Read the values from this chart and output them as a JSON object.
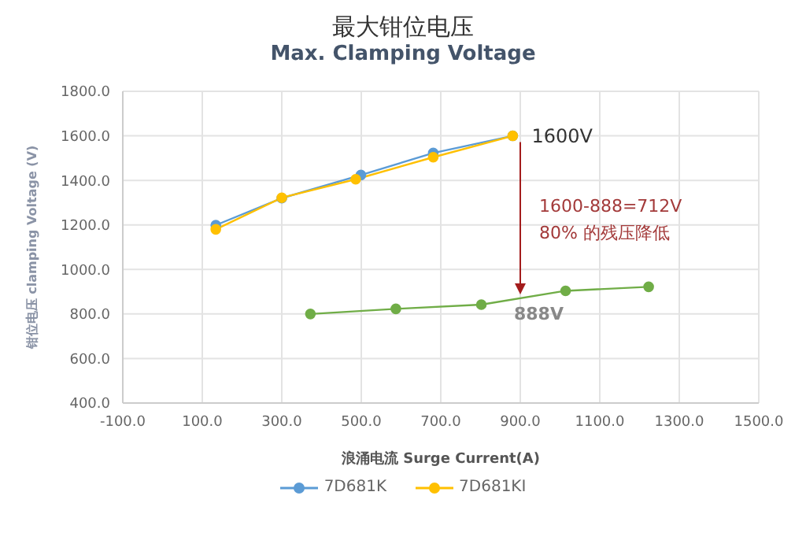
{
  "chart_data": {
    "type": "line",
    "title": "最大钳位电压",
    "subtitle": "Max. Clamping Voltage",
    "xlabel": "浪涌电流 Surge Current(A)",
    "ylabel": "钳位电压 clamping Voltage (V)",
    "series": [
      {
        "color": "#70ad47",
        "x": [
          372,
          587,
          802,
          1014,
          1223
        ],
        "values": [
          800,
          823,
          842,
          904,
          922
        ]
      },
      {
        "name": "7D681K",
        "color": "#5b9bd5",
        "x": [
          134,
          300,
          499,
          681,
          881
        ],
        "values": [
          1199,
          1320,
          1424,
          1523,
          1600
        ]
      },
      {
        "name": "7D681KI",
        "color": "#ffc000",
        "x": [
          134,
          300,
          486,
          681,
          881
        ],
        "values": [
          1180,
          1322,
          1405,
          1504,
          1600
        ]
      }
    ],
    "xlim": [
      -100,
      1500
    ],
    "xticks": [
      {
        "value": -100,
        "label": "-100.0"
      },
      {
        "value": 100,
        "label": "100.0"
      },
      {
        "value": 300,
        "label": "300.0"
      },
      {
        "value": 500,
        "label": "500.0"
      },
      {
        "value": 700,
        "label": "700.0"
      },
      {
        "value": 900,
        "label": "900.0"
      },
      {
        "value": 1100,
        "label": "1100.0"
      },
      {
        "value": 1300,
        "label": "1300.0"
      },
      {
        "value": 1500,
        "label": "1500.0"
      }
    ],
    "ylim": [
      400,
      1800
    ],
    "yticks": [
      {
        "value": 400,
        "label": "400.0"
      },
      {
        "value": 600,
        "label": "600.0"
      },
      {
        "value": 800,
        "label": "800.0"
      },
      {
        "value": 1000,
        "label": "1000.0"
      },
      {
        "value": 1200,
        "label": "1200.0"
      },
      {
        "value": 1400,
        "label": "1400.0"
      },
      {
        "value": 1600,
        "label": "1600.0"
      },
      {
        "value": 1800,
        "label": "1800.0"
      }
    ],
    "annotations": [
      {
        "text": "1600V",
        "x": 881,
        "y": 1600
      },
      {
        "text": "888V",
        "x": 900,
        "y": 888
      },
      "1600-888=712V",
      "80% 的残压降低"
    ],
    "grid": true,
    "legend": "bottom",
    "marker": "circle",
    "line_style": "solid"
  }
}
